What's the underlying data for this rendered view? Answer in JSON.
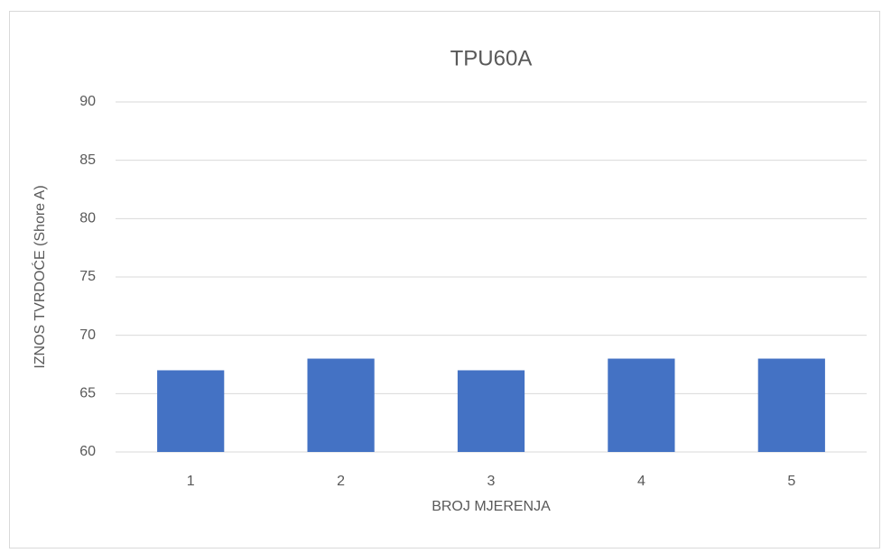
{
  "chart_data": {
    "type": "bar",
    "title": "TPU60A",
    "x_label": "BROJ MJERENJA",
    "y_label": "IZNOS TVRDOĆE (Shore A)",
    "categories": [
      "1",
      "2",
      "3",
      "4",
      "5"
    ],
    "values": [
      67,
      68,
      67,
      68,
      68
    ],
    "color": "#4472c4",
    "ylim": [
      60,
      90
    ],
    "yticks": [
      60,
      65,
      70,
      75,
      80,
      85,
      90
    ],
    "grid": true
  }
}
